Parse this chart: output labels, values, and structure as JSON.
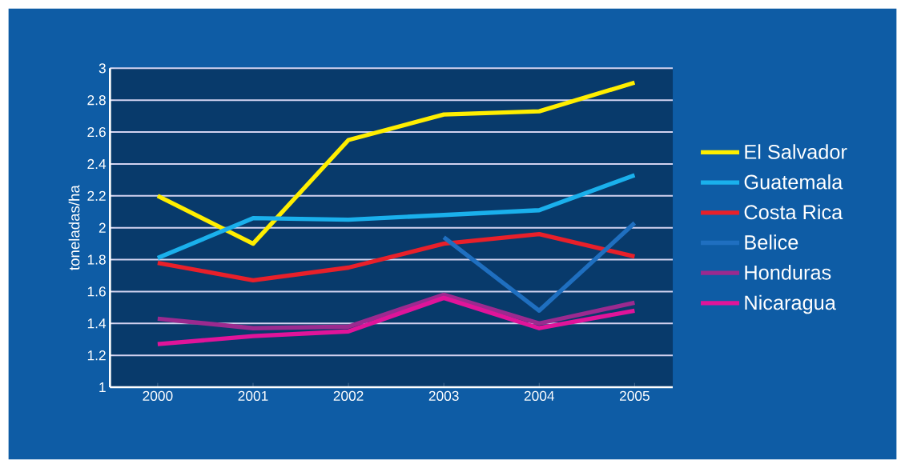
{
  "chart_data": {
    "type": "line",
    "ylabel": "toneladas/ha",
    "categories": [
      "2000",
      "2001",
      "2002",
      "2003",
      "2004",
      "2005"
    ],
    "series": [
      {
        "name": "El Salvador",
        "color": "#ffee00",
        "values": [
          2.2,
          1.9,
          2.55,
          2.71,
          2.73,
          2.91
        ]
      },
      {
        "name": "Guatemala",
        "color": "#1ab0ec",
        "values": [
          1.81,
          2.06,
          2.05,
          2.08,
          2.11,
          2.33
        ]
      },
      {
        "name": "Costa Rica",
        "color": "#e8202a",
        "values": [
          1.78,
          1.67,
          1.75,
          1.9,
          1.96,
          1.82
        ]
      },
      {
        "name": "Belice",
        "color": "#1f6fc0",
        "values": [
          null,
          null,
          null,
          1.94,
          1.48,
          2.03
        ]
      },
      {
        "name": "Honduras",
        "color": "#9b2a8f",
        "values": [
          1.43,
          1.37,
          1.38,
          1.58,
          1.4,
          1.53
        ]
      },
      {
        "name": "Nicaragua",
        "color": "#e0149a",
        "values": [
          1.27,
          1.32,
          1.35,
          1.56,
          1.37,
          1.48
        ]
      }
    ],
    "ylim": [
      1,
      3
    ],
    "yticks": [
      1,
      1.2,
      1.4,
      1.6,
      1.8,
      2,
      2.2,
      2.4,
      2.6,
      2.8,
      3
    ],
    "grid": "y",
    "legend": "right",
    "marker": "none",
    "line_style": "solid"
  }
}
